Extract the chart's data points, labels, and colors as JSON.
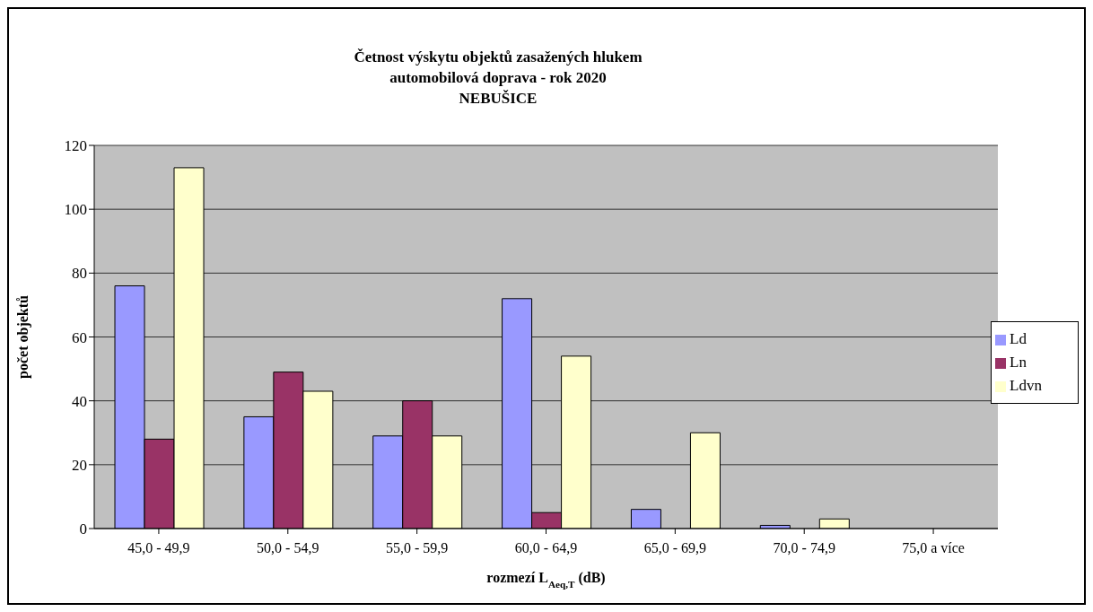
{
  "chart_data": {
    "type": "bar",
    "title": "Četnost výskytu objektů zasažených hlukem\nautomobilová doprava - rok 2020\nNEBUŠICE",
    "xlabel": "rozmezí L$_{Aeq,T}$ (dB)",
    "ylabel": "počet objektů",
    "categories": [
      "45,0 - 49,9",
      "50,0 - 54,9",
      "55,0 - 59,9",
      "60,0 - 64,9",
      "65,0 - 69,9",
      "70,0 - 74,9",
      "75,0 a více"
    ],
    "series": [
      {
        "name": "Ld",
        "color": "#9999ff",
        "values": [
          76,
          35,
          29,
          72,
          6,
          1,
          0
        ]
      },
      {
        "name": "Ln",
        "color": "#993366",
        "values": [
          28,
          49,
          40,
          5,
          0,
          0,
          0
        ]
      },
      {
        "name": "Ldvn",
        "color": "#ffffcc",
        "values": [
          113,
          43,
          29,
          54,
          30,
          3,
          0
        ]
      }
    ],
    "ylim": [
      0,
      120
    ],
    "yticks": [
      0,
      20,
      40,
      60,
      80,
      100,
      120
    ],
    "grid": "y",
    "legend": "right"
  }
}
